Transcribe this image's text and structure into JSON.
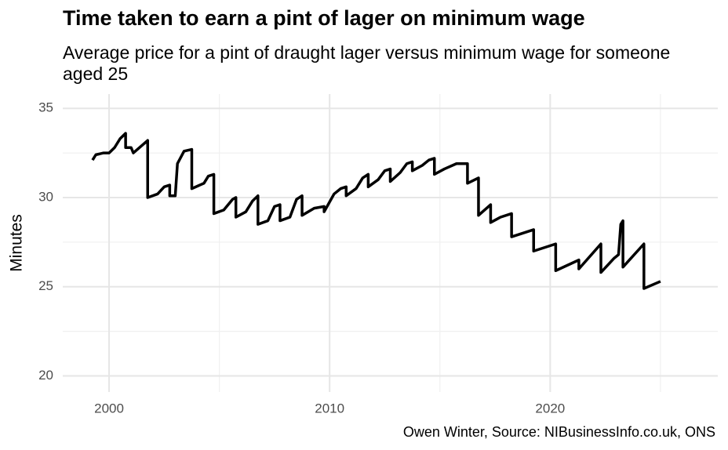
{
  "chart_data": {
    "type": "line",
    "title": "Time taken to earn a pint of lager on minimum wage",
    "subtitle": "Average price for a pint of draught lager versus minimum wage for someone aged 25",
    "caption": "Owen Winter, Source: NIBusinessInfo.co.uk, ONS",
    "y_label": "Minutes",
    "x": [
      1999.25,
      1999.4,
      1999.75,
      2000.0,
      2000.25,
      2000.5,
      2000.75,
      2000.75,
      2001.0,
      2001.1,
      2001.75,
      2001.75,
      2002.2,
      2002.5,
      2002.75,
      2002.75,
      2003.0,
      2003.1,
      2003.4,
      2003.75,
      2003.75,
      2004.3,
      2004.5,
      2004.75,
      2004.75,
      2005.2,
      2005.6,
      2005.75,
      2005.75,
      2006.2,
      2006.5,
      2006.75,
      2006.75,
      2007.2,
      2007.5,
      2007.75,
      2007.75,
      2008.2,
      2008.5,
      2008.75,
      2008.75,
      2009.3,
      2009.75,
      2009.75,
      2010.2,
      2010.5,
      2010.75,
      2010.75,
      2011.2,
      2011.5,
      2011.75,
      2011.75,
      2012.2,
      2012.5,
      2012.75,
      2012.75,
      2013.2,
      2013.5,
      2013.75,
      2013.75,
      2014.2,
      2014.5,
      2014.75,
      2014.75,
      2015.2,
      2015.75,
      2016.25,
      2016.25,
      2016.75,
      2016.75,
      2017.3,
      2017.3,
      2017.75,
      2018.25,
      2018.25,
      2019.25,
      2019.25,
      2020.25,
      2020.25,
      2021.3,
      2021.3,
      2022.3,
      2022.3,
      2022.9,
      2023.1,
      2023.2,
      2023.3,
      2023.3,
      2024.25,
      2024.25,
      2025.0
    ],
    "series": [
      {
        "name": "Minutes",
        "color": "#000000",
        "values": [
          32.1,
          32.4,
          32.5,
          32.5,
          32.8,
          33.3,
          33.6,
          32.8,
          32.8,
          32.5,
          33.2,
          30.0,
          30.2,
          30.6,
          30.7,
          30.1,
          30.1,
          31.9,
          32.6,
          32.7,
          30.5,
          30.8,
          31.2,
          31.3,
          29.1,
          29.3,
          29.9,
          30.0,
          28.9,
          29.2,
          29.8,
          30.1,
          28.5,
          28.7,
          29.5,
          29.6,
          28.7,
          28.9,
          29.9,
          30.1,
          29.0,
          29.4,
          29.5,
          29.2,
          30.2,
          30.5,
          30.6,
          30.1,
          30.5,
          31.1,
          31.3,
          30.6,
          31.0,
          31.5,
          31.6,
          30.9,
          31.4,
          31.9,
          32.0,
          31.5,
          31.8,
          32.1,
          32.2,
          31.3,
          31.6,
          31.9,
          31.9,
          30.8,
          31.1,
          29.0,
          29.6,
          28.6,
          28.9,
          29.1,
          27.8,
          28.2,
          27.0,
          27.4,
          25.9,
          26.5,
          26.0,
          27.4,
          25.8,
          26.6,
          26.8,
          28.5,
          28.7,
          26.1,
          27.4,
          24.9,
          25.3
        ]
      }
    ],
    "xlim": [
      1997.9,
      2027.6
    ],
    "xticks": [
      2000,
      2010,
      2020
    ],
    "minor_xticks": [
      2005,
      2015,
      2025
    ],
    "ylim": [
      19.1,
      35.8
    ],
    "yticks": [
      20,
      25,
      30,
      35
    ],
    "minor_yticks": [
      22.5,
      27.5,
      32.5
    ],
    "grid": true,
    "legend": false
  }
}
